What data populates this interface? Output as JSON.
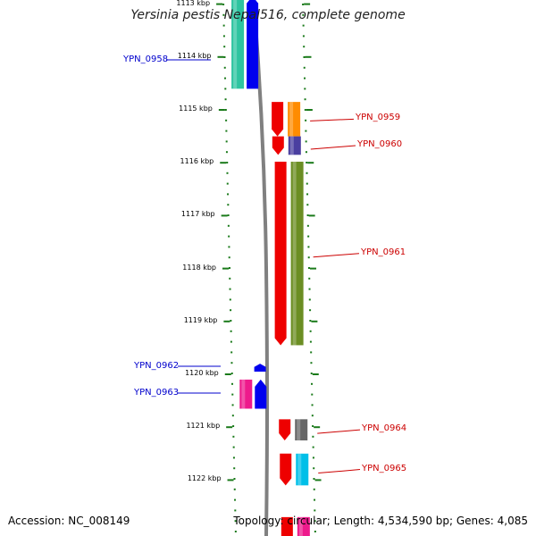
{
  "title": "Yersinia pestis Nepal516, complete genome",
  "footer": {
    "accession": "Accession: NC_008149",
    "summary": "Topology: circular; Length: 4,534,590 bp; Genes: 4,085"
  },
  "colors": {
    "tick_green": "#1a7a1a",
    "backbone": "#808080",
    "fwd_label": "#0000cc",
    "rev_label": "#cc0000"
  },
  "scale_labels": [
    {
      "kbp": 1113,
      "text": "1113 kbp"
    },
    {
      "kbp": 1114,
      "text": "1114 kbp"
    },
    {
      "kbp": 1115,
      "text": "1115 kbp"
    },
    {
      "kbp": 1116,
      "text": "1116 kbp"
    },
    {
      "kbp": 1117,
      "text": "1117 kbp"
    },
    {
      "kbp": 1118,
      "text": "1118 kbp"
    },
    {
      "kbp": 1119,
      "text": "1119 kbp"
    },
    {
      "kbp": 1120,
      "text": "1120 kbp"
    },
    {
      "kbp": 1121,
      "text": "1121 kbp"
    },
    {
      "kbp": 1122,
      "text": "1122 kbp"
    }
  ],
  "genes": [
    {
      "id": "YPN_0958",
      "strand": "+",
      "start_kbp": 1112.85,
      "end_kbp": 1114.6,
      "cds_color": "#0000ee",
      "feature_color": "#2ec4a0"
    },
    {
      "id": "YPN_0959",
      "strand": "-",
      "start_kbp": 1114.85,
      "end_kbp": 1115.5,
      "cds_color": "#ee0000",
      "feature_color": "#ff8c00"
    },
    {
      "id": "YPN_0960",
      "strand": "-",
      "start_kbp": 1115.5,
      "end_kbp": 1115.85,
      "cds_color": "#ee0000",
      "feature_color": "#4a3fa0"
    },
    {
      "id": "YPN_0961",
      "strand": "-",
      "start_kbp": 1115.98,
      "end_kbp": 1119.45,
      "cds_color": "#ee0000",
      "feature_color": "#6b8e23"
    },
    {
      "id": "YPN_0962",
      "strand": "+",
      "start_kbp": 1119.8,
      "end_kbp": 1119.95,
      "cds_color": "#0000ee",
      "feature_color": null
    },
    {
      "id": "YPN_0963",
      "strand": "+",
      "start_kbp": 1120.1,
      "end_kbp": 1120.65,
      "cds_color": "#0000ee",
      "feature_color": "#ee1a8c"
    },
    {
      "id": "YPN_0964",
      "strand": "-",
      "start_kbp": 1120.85,
      "end_kbp": 1121.25,
      "cds_color": "#ee0000",
      "feature_color": "#666666"
    },
    {
      "id": "YPN_0965",
      "strand": "-",
      "start_kbp": 1121.5,
      "end_kbp": 1122.1,
      "cds_color": "#ee0000",
      "feature_color": "#00bfe8"
    },
    {
      "id": "",
      "strand": "-",
      "start_kbp": 1122.7,
      "end_kbp": 1123.2,
      "cds_color": "#ee0000",
      "feature_color": "#ee1a8c"
    }
  ]
}
